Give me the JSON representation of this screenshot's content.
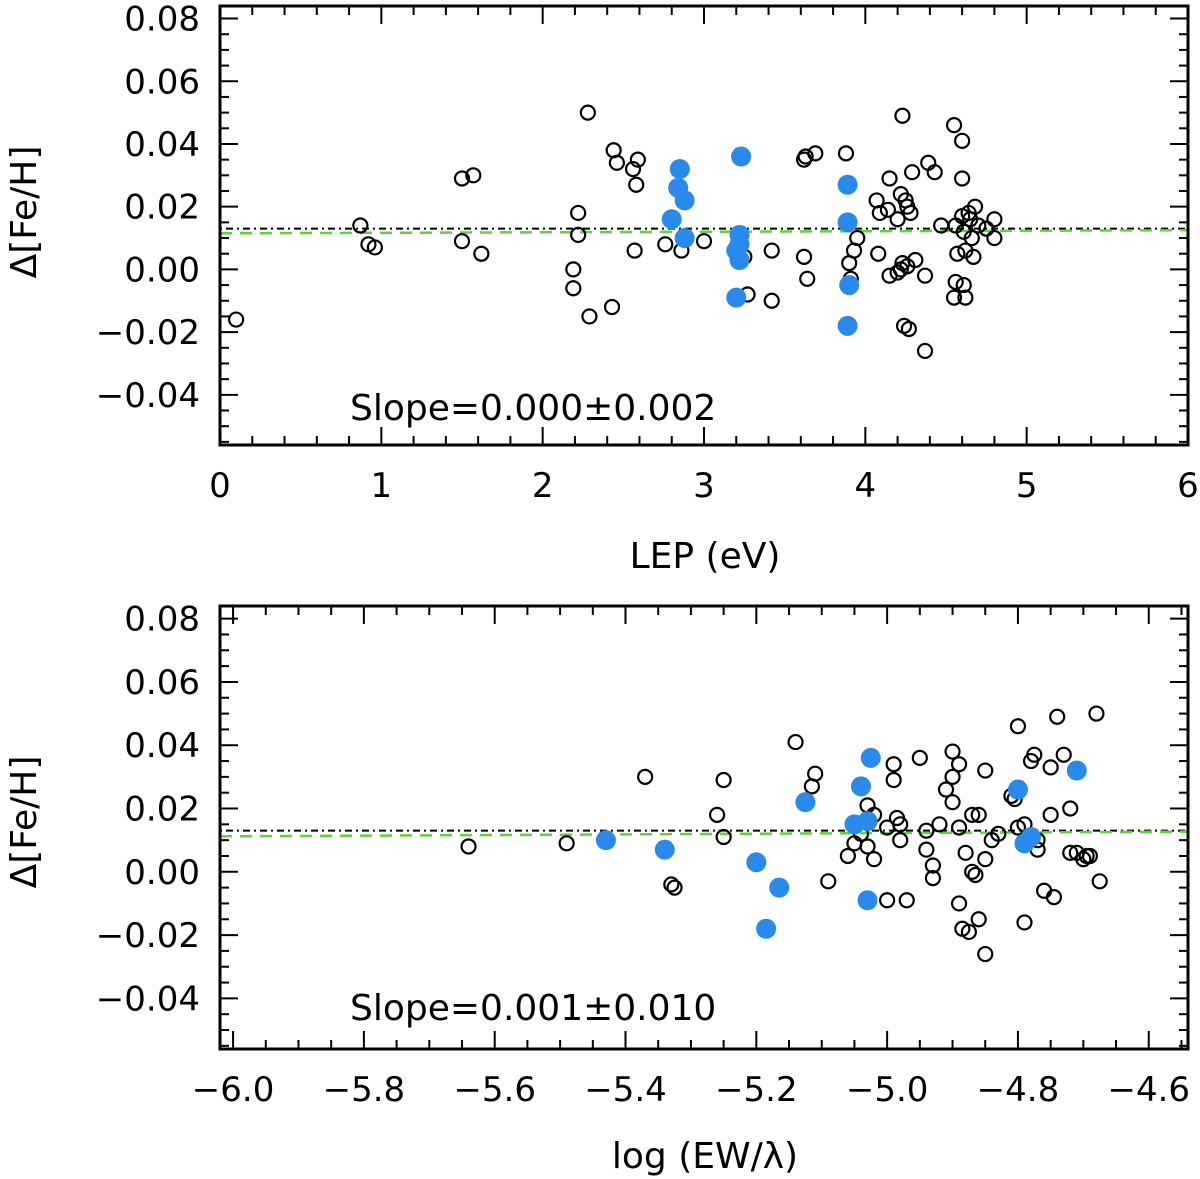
{
  "chart_data": [
    {
      "type": "scatter",
      "title": "",
      "xlabel": "LEP (eV)",
      "ylabel": "Δ[Fe/H]",
      "xlim": [
        0,
        6
      ],
      "ylim": [
        -0.056,
        0.084
      ],
      "xticks": [
        0,
        1,
        2,
        3,
        4,
        5,
        6
      ],
      "xtick_labels": [
        "0",
        "1",
        "2",
        "3",
        "4",
        "5",
        "6"
      ],
      "yticks": [
        -0.04,
        -0.02,
        0.0,
        0.02,
        0.04,
        0.06,
        0.08
      ],
      "ytick_labels": [
        "−0.04",
        "−0.02",
        "0.00",
        "0.02",
        "0.04",
        "0.06",
        "0.08"
      ],
      "annotation": "Slope=0.000±0.002",
      "mean_line": 0.013,
      "fit_line": [
        [
          0,
          0.0115
        ],
        [
          6,
          0.0125
        ]
      ],
      "series": [
        {
          "name": "open",
          "marker": "open-circle",
          "color": "#000000",
          "points": [
            [
              0.1,
              -0.016
            ],
            [
              0.87,
              0.014
            ],
            [
              0.92,
              0.008
            ],
            [
              0.96,
              0.007
            ],
            [
              1.5,
              0.029
            ],
            [
              1.57,
              0.03
            ],
            [
              1.5,
              0.009
            ],
            [
              1.62,
              0.005
            ],
            [
              2.22,
              0.018
            ],
            [
              2.22,
              0.011
            ],
            [
              2.28,
              0.05
            ],
            [
              2.19,
              0.0
            ],
            [
              2.19,
              -0.006
            ],
            [
              2.29,
              -0.015
            ],
            [
              2.43,
              -0.012
            ],
            [
              2.44,
              0.038
            ],
            [
              2.46,
              0.034
            ],
            [
              2.56,
              0.032
            ],
            [
              2.59,
              0.035
            ],
            [
              2.58,
              0.027
            ],
            [
              2.57,
              0.006
            ],
            [
              2.76,
              0.008
            ],
            [
              2.86,
              0.006
            ],
            [
              3.0,
              0.009
            ],
            [
              3.25,
              0.004
            ],
            [
              3.27,
              -0.008
            ],
            [
              3.42,
              0.006
            ],
            [
              3.42,
              -0.01
            ],
            [
              3.62,
              0.035
            ],
            [
              3.63,
              0.036
            ],
            [
              3.69,
              0.037
            ],
            [
              3.62,
              0.004
            ],
            [
              3.64,
              -0.003
            ],
            [
              3.88,
              0.037
            ],
            [
              3.93,
              0.006
            ],
            [
              3.95,
              0.01
            ],
            [
              3.9,
              0.002
            ],
            [
              3.91,
              -0.003
            ],
            [
              4.07,
              0.022
            ],
            [
              4.09,
              0.018
            ],
            [
              4.14,
              0.019
            ],
            [
              4.15,
              0.029
            ],
            [
              4.2,
              0.016
            ],
            [
              4.22,
              0.024
            ],
            [
              4.25,
              0.022
            ],
            [
              4.26,
              0.02
            ],
            [
              4.28,
              0.018
            ],
            [
              4.23,
              0.049
            ],
            [
              4.08,
              0.005
            ],
            [
              4.15,
              -0.002
            ],
            [
              4.2,
              -0.001
            ],
            [
              4.23,
              0.002
            ],
            [
              4.22,
              0.0
            ],
            [
              4.26,
              0.001
            ],
            [
              4.24,
              -0.018
            ],
            [
              4.27,
              -0.019
            ],
            [
              4.29,
              0.031
            ],
            [
              4.31,
              0.003
            ],
            [
              4.37,
              -0.026
            ],
            [
              4.39,
              0.034
            ],
            [
              4.43,
              0.031
            ],
            [
              4.37,
              -0.002
            ],
            [
              4.47,
              0.014
            ],
            [
              4.55,
              0.046
            ],
            [
              4.56,
              0.014
            ],
            [
              4.57,
              0.005
            ],
            [
              4.55,
              -0.009
            ],
            [
              4.56,
              -0.004
            ],
            [
              4.6,
              0.041
            ],
            [
              4.6,
              0.029
            ],
            [
              4.6,
              0.017
            ],
            [
              4.61,
              0.012
            ],
            [
              4.62,
              0.006
            ],
            [
              4.61,
              -0.005
            ],
            [
              4.62,
              -0.009
            ],
            [
              4.64,
              0.018
            ],
            [
              4.65,
              0.016
            ],
            [
              4.66,
              0.01
            ],
            [
              4.67,
              0.004
            ],
            [
              4.68,
              0.02
            ],
            [
              4.7,
              0.014
            ],
            [
              4.75,
              0.013
            ],
            [
              4.8,
              0.016
            ],
            [
              4.8,
              0.01
            ]
          ]
        },
        {
          "name": "filled",
          "marker": "filled-circle",
          "color": "#2a8aec",
          "points": [
            [
              2.8,
              0.016
            ],
            [
              2.84,
              0.026
            ],
            [
              2.85,
              0.032
            ],
            [
              2.88,
              0.022
            ],
            [
              2.88,
              0.01
            ],
            [
              3.23,
              0.036
            ],
            [
              3.22,
              0.011
            ],
            [
              3.22,
              0.008
            ],
            [
              3.2,
              0.006
            ],
            [
              3.22,
              0.003
            ],
            [
              3.2,
              -0.009
            ],
            [
              3.89,
              0.027
            ],
            [
              3.89,
              0.015
            ],
            [
              3.9,
              -0.005
            ],
            [
              3.89,
              -0.018
            ]
          ]
        }
      ]
    },
    {
      "type": "scatter",
      "title": "",
      "xlabel": "log (EW/λ)",
      "ylabel": "Δ[Fe/H]",
      "xlim": [
        -6.02,
        -4.54
      ],
      "ylim": [
        -0.056,
        0.084
      ],
      "xticks": [
        -6.0,
        -5.8,
        -5.6,
        -5.4,
        -5.2,
        -5.0,
        -4.8,
        -4.6
      ],
      "xtick_labels": [
        "−6.0",
        "−5.8",
        "−5.6",
        "−5.4",
        "−5.2",
        "−5.0",
        "−4.8",
        "−4.6"
      ],
      "yticks": [
        -0.04,
        -0.02,
        0.0,
        0.02,
        0.04,
        0.06,
        0.08
      ],
      "ytick_labels": [
        "−0.04",
        "−0.02",
        "0.00",
        "0.02",
        "0.04",
        "0.06",
        "0.08"
      ],
      "annotation": "Slope=0.001±0.010",
      "mean_line": 0.013,
      "fit_line": [
        [
          -6.02,
          0.0112
        ],
        [
          -4.54,
          0.0127
        ]
      ],
      "series": [
        {
          "name": "open",
          "marker": "open-circle",
          "color": "#000000",
          "points": [
            [
              -5.64,
              0.008
            ],
            [
              -5.49,
              0.009
            ],
            [
              -5.37,
              0.03
            ],
            [
              -5.33,
              -0.004
            ],
            [
              -5.325,
              -0.005
            ],
            [
              -5.26,
              0.018
            ],
            [
              -5.25,
              0.029
            ],
            [
              -5.25,
              0.011
            ],
            [
              -5.14,
              0.041
            ],
            [
              -5.11,
              0.031
            ],
            [
              -5.115,
              0.027
            ],
            [
              -5.09,
              -0.003
            ],
            [
              -5.06,
              0.005
            ],
            [
              -5.05,
              0.009
            ],
            [
              -5.04,
              0.012
            ],
            [
              -5.03,
              0.021
            ],
            [
              -5.03,
              0.008
            ],
            [
              -5.02,
              0.018
            ],
            [
              -5.02,
              0.004
            ],
            [
              -5.0,
              0.014
            ],
            [
              -5.0,
              -0.009
            ],
            [
              -4.99,
              0.034
            ],
            [
              -4.99,
              0.029
            ],
            [
              -4.985,
              0.017
            ],
            [
              -4.98,
              0.015
            ],
            [
              -4.98,
              0.01
            ],
            [
              -4.97,
              -0.009
            ],
            [
              -4.95,
              0.036
            ],
            [
              -4.94,
              0.013
            ],
            [
              -4.94,
              0.007
            ],
            [
              -4.93,
              0.002
            ],
            [
              -4.93,
              -0.002
            ],
            [
              -4.92,
              0.015
            ],
            [
              -4.91,
              0.026
            ],
            [
              -4.9,
              0.038
            ],
            [
              -4.9,
              0.03
            ],
            [
              -4.89,
              0.034
            ],
            [
              -4.9,
              0.022
            ],
            [
              -4.89,
              0.014
            ],
            [
              -4.89,
              -0.01
            ],
            [
              -4.885,
              -0.018
            ],
            [
              -4.875,
              -0.019
            ],
            [
              -4.88,
              0.006
            ],
            [
              -4.87,
              0.018
            ],
            [
              -4.87,
              0.0
            ],
            [
              -4.865,
              -0.001
            ],
            [
              -4.86,
              0.018
            ],
            [
              -4.86,
              -0.015
            ],
            [
              -4.85,
              0.004
            ],
            [
              -4.85,
              -0.026
            ],
            [
              -4.85,
              0.032
            ],
            [
              -4.84,
              0.01
            ],
            [
              -4.83,
              0.012
            ],
            [
              -4.81,
              0.024
            ],
            [
              -4.805,
              0.023
            ],
            [
              -4.8,
              0.046
            ],
            [
              -4.8,
              0.014
            ],
            [
              -4.79,
              0.015
            ],
            [
              -4.79,
              -0.016
            ],
            [
              -4.78,
              0.035
            ],
            [
              -4.775,
              0.037
            ],
            [
              -4.77,
              0.01
            ],
            [
              -4.77,
              0.007
            ],
            [
              -4.76,
              -0.006
            ],
            [
              -4.75,
              0.033
            ],
            [
              -4.75,
              0.018
            ],
            [
              -4.745,
              -0.008
            ],
            [
              -4.74,
              0.049
            ],
            [
              -4.73,
              0.037
            ],
            [
              -4.72,
              0.02
            ],
            [
              -4.72,
              0.006
            ],
            [
              -4.71,
              0.006
            ],
            [
              -4.7,
              0.004
            ],
            [
              -4.695,
              0.005
            ],
            [
              -4.69,
              0.005
            ],
            [
              -4.68,
              0.05
            ],
            [
              -4.675,
              -0.003
            ]
          ]
        },
        {
          "name": "filled",
          "marker": "filled-circle",
          "color": "#2a8aec",
          "points": [
            [
              -5.43,
              0.01
            ],
            [
              -5.34,
              0.007
            ],
            [
              -5.2,
              0.003
            ],
            [
              -5.185,
              -0.018
            ],
            [
              -5.165,
              -0.005
            ],
            [
              -5.125,
              0.022
            ],
            [
              -5.05,
              0.015
            ],
            [
              -5.04,
              0.027
            ],
            [
              -5.03,
              0.016
            ],
            [
              -5.025,
              0.036
            ],
            [
              -5.03,
              -0.009
            ],
            [
              -4.8,
              0.026
            ],
            [
              -4.79,
              0.009
            ],
            [
              -4.78,
              0.011
            ],
            [
              -4.71,
              0.032
            ]
          ]
        }
      ]
    }
  ]
}
